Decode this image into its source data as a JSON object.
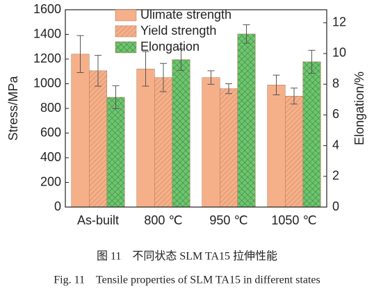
{
  "chart_data": {
    "type": "bar",
    "categories": [
      "As-built",
      "800 ℃",
      "950 ℃",
      "1050 ℃"
    ],
    "y_label": "Stress/MPa",
    "y2_label": "Elongation/%",
    "ylim": [
      0,
      1600
    ],
    "yticks": [
      0,
      200,
      400,
      600,
      800,
      1000,
      1200,
      1400,
      1600
    ],
    "y2lim": [
      0,
      12.85
    ],
    "y2ticks": [
      0,
      2,
      4,
      6,
      8,
      10,
      12
    ],
    "series": [
      {
        "name": "Ulimate strength",
        "color": "#f5b08a",
        "pattern": "solid",
        "values": [
          1240,
          1120,
          1050,
          990
        ],
        "errors": [
          150,
          140,
          55,
          80
        ]
      },
      {
        "name": "Yield strength",
        "color": "#f5b08a",
        "pattern": "hatch",
        "values": [
          1105,
          1050,
          960,
          900
        ],
        "errors": [
          125,
          115,
          40,
          65
        ]
      },
      {
        "name": "Elongation",
        "color": "#6fc46f",
        "pattern": "cross",
        "axis": "y2",
        "values": [
          7.15,
          9.6,
          11.27,
          9.46
        ],
        "errors": [
          0.75,
          0.7,
          0.6,
          0.75
        ]
      }
    ],
    "captions": [
      "图 11　不同状态 SLM TA15 拉伸性能",
      "Fig. 11　Tensile properties of SLM TA15 in different states"
    ]
  }
}
